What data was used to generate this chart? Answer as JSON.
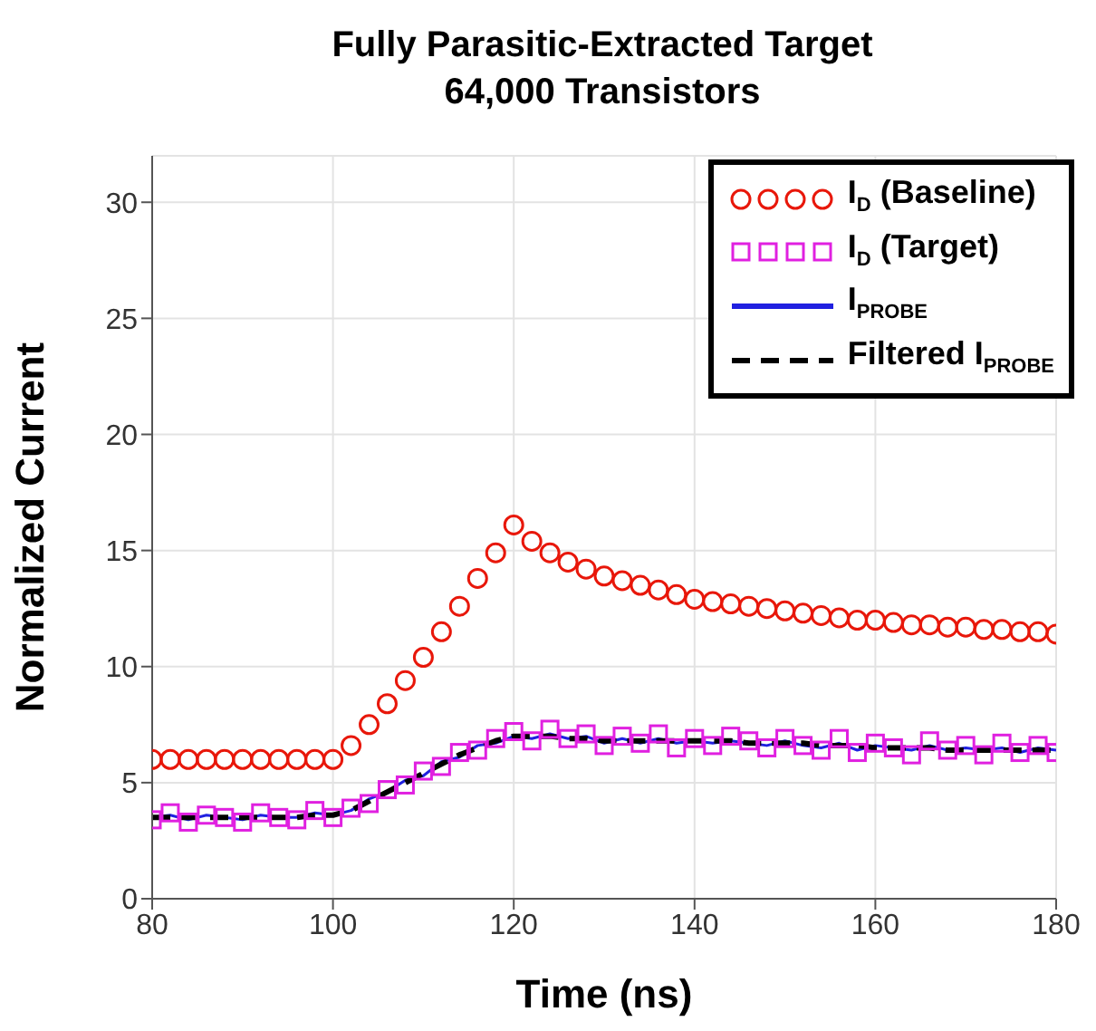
{
  "chart_data": {
    "type": "line",
    "title": "Fully Parasitic-Extracted Target\n64,000 Transistors",
    "xlabel": "Time (ns)",
    "ylabel": "Normalized Current",
    "x": [
      80,
      82,
      84,
      86,
      88,
      90,
      92,
      94,
      96,
      98,
      100,
      102,
      104,
      106,
      108,
      110,
      112,
      114,
      116,
      118,
      120,
      122,
      124,
      126,
      128,
      130,
      132,
      134,
      136,
      138,
      140,
      142,
      144,
      146,
      148,
      150,
      152,
      154,
      156,
      158,
      160,
      162,
      164,
      166,
      168,
      170,
      172,
      174,
      176,
      178,
      180
    ],
    "series": [
      {
        "name": "I$_{D}$ (Baseline)",
        "type": "scatter",
        "marker": "circle",
        "color": "#e8170a",
        "values": [
          6,
          6,
          6,
          6,
          6,
          6,
          6,
          6,
          6,
          6,
          6,
          6.6,
          7.5,
          8.4,
          9.4,
          10.4,
          11.5,
          12.6,
          13.8,
          14.9,
          16.1,
          15.4,
          14.9,
          14.5,
          14.2,
          13.9,
          13.7,
          13.5,
          13.3,
          13.1,
          12.9,
          12.8,
          12.7,
          12.6,
          12.5,
          12.4,
          12.3,
          12.2,
          12.1,
          12.0,
          12.0,
          11.9,
          11.8,
          11.8,
          11.7,
          11.7,
          11.6,
          11.6,
          11.5,
          11.5,
          11.4
        ]
      },
      {
        "name": "I$_{D}$ (Target)",
        "type": "scatter",
        "marker": "square",
        "color": "#e020e0",
        "values": [
          3.4,
          3.7,
          3.3,
          3.6,
          3.5,
          3.3,
          3.7,
          3.5,
          3.4,
          3.8,
          3.5,
          3.9,
          4.1,
          4.7,
          4.9,
          5.5,
          5.7,
          6.3,
          6.4,
          6.9,
          7.2,
          6.8,
          7.3,
          6.9,
          7.1,
          6.6,
          7.0,
          6.7,
          7.1,
          6.5,
          6.9,
          6.6,
          7.0,
          6.8,
          6.5,
          6.9,
          6.6,
          6.4,
          6.9,
          6.3,
          6.7,
          6.5,
          6.2,
          6.8,
          6.4,
          6.6,
          6.2,
          6.7,
          6.3,
          6.6,
          6.3
        ]
      },
      {
        "name": "I$_{PROBE}$",
        "type": "line",
        "marker": "none",
        "color": "#2020e0",
        "values": [
          3.5,
          3.6,
          3.4,
          3.6,
          3.5,
          3.4,
          3.6,
          3.5,
          3.5,
          3.7,
          3.6,
          3.8,
          4.3,
          4.6,
          5.1,
          5.3,
          5.9,
          6.1,
          6.6,
          6.7,
          7.0,
          6.9,
          7.1,
          6.9,
          7.0,
          6.7,
          6.9,
          6.7,
          6.9,
          6.7,
          6.8,
          6.7,
          6.8,
          6.7,
          6.6,
          6.8,
          6.6,
          6.5,
          6.7,
          6.4,
          6.6,
          6.5,
          6.4,
          6.6,
          6.4,
          6.5,
          6.4,
          6.5,
          6.3,
          6.5,
          6.4
        ]
      },
      {
        "name": "Filtered I$_{PROBE}$",
        "type": "line",
        "marker": "none",
        "line_style": "dashed",
        "color": "#000000",
        "values": [
          3.5,
          3.5,
          3.5,
          3.5,
          3.5,
          3.5,
          3.5,
          3.5,
          3.5,
          3.6,
          3.6,
          3.8,
          4.2,
          4.6,
          5.0,
          5.4,
          5.8,
          6.2,
          6.5,
          6.8,
          7.0,
          7.0,
          7.0,
          6.9,
          6.9,
          6.8,
          6.8,
          6.8,
          6.8,
          6.8,
          6.8,
          6.8,
          6.8,
          6.7,
          6.7,
          6.7,
          6.7,
          6.6,
          6.6,
          6.6,
          6.5,
          6.5,
          6.5,
          6.5,
          6.4,
          6.4,
          6.4,
          6.4,
          6.4,
          6.4,
          6.4
        ]
      }
    ],
    "xlim": [
      80,
      180
    ],
    "xticks": [
      80,
      100,
      120,
      140,
      160,
      180
    ],
    "ylim": [
      0,
      32
    ],
    "yticks": [
      0,
      5,
      10,
      15,
      20,
      25,
      30
    ],
    "grid": true,
    "legend": "top right"
  }
}
